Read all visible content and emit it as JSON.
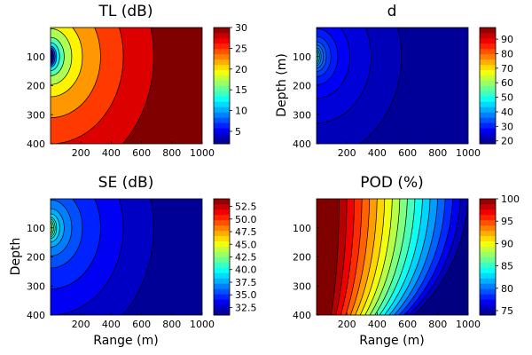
{
  "chart_data": [
    {
      "type": "heatmap",
      "subtype": "filled-contour",
      "title": "TL (dB)",
      "xlabel": "",
      "ylabel": "",
      "x_ticks": [
        200,
        400,
        600,
        800,
        1000
      ],
      "y_ticks": [
        100,
        200,
        300,
        400
      ],
      "xlim": [
        0,
        1000
      ],
      "ylim": [
        400,
        0
      ],
      "y_inverted": true,
      "colormap": "jet",
      "colorbar_range": [
        2,
        30
      ],
      "colorbar_ticks": [
        5,
        10,
        15,
        20,
        25,
        30
      ],
      "colorbar_tick_labels": [
        "5",
        "10",
        "15",
        "20",
        "25",
        "30"
      ],
      "source_x": 0,
      "source_depth": 100,
      "value_at_source": 2,
      "value_far": 30,
      "contour_ranges": [
        10,
        20,
        30,
        40,
        60,
        90,
        140,
        210,
        330,
        480,
        680
      ]
    },
    {
      "type": "heatmap",
      "subtype": "filled-contour",
      "title": "d",
      "xlabel": "",
      "ylabel": "Depth (m)",
      "x_ticks": [
        200,
        400,
        600,
        800,
        1000
      ],
      "y_ticks": [
        100,
        200,
        300,
        400
      ],
      "xlim": [
        0,
        1000
      ],
      "ylim": [
        400,
        0
      ],
      "y_inverted": true,
      "colormap": "jet",
      "colorbar_range": [
        18,
        98
      ],
      "colorbar_ticks": [
        20,
        30,
        40,
        50,
        60,
        70,
        80,
        90
      ],
      "colorbar_tick_labels": [
        "20",
        "30",
        "40",
        "50",
        "60",
        "70",
        "80",
        "90"
      ],
      "source_x": 0,
      "source_depth": 100,
      "value_at_source": 45,
      "value_far": 20,
      "contour_ranges": [
        10,
        20,
        30,
        45,
        65,
        95,
        140,
        220,
        360,
        560
      ]
    },
    {
      "type": "heatmap",
      "subtype": "filled-contour",
      "title": "SE (dB)",
      "xlabel": "Range (m)",
      "ylabel": "Depth",
      "x_ticks": [
        200,
        400,
        600,
        800,
        1000
      ],
      "y_ticks": [
        100,
        200,
        300,
        400
      ],
      "xlim": [
        0,
        1000
      ],
      "ylim": [
        400,
        0
      ],
      "y_inverted": true,
      "colormap": "jet",
      "colorbar_range": [
        31,
        54
      ],
      "colorbar_ticks": [
        32.5,
        35,
        37.5,
        40,
        42.5,
        45,
        47.5,
        50,
        52.5
      ],
      "colorbar_tick_labels": [
        "32.5",
        "35.0",
        "37.5",
        "40.0",
        "42.5",
        "45.0",
        "47.5",
        "50.0",
        "52.5"
      ],
      "source_x": 0,
      "source_depth": 100,
      "value_at_source": 43,
      "value_far": 31.5,
      "contour_ranges": [
        10,
        20,
        30,
        40,
        60,
        90,
        140,
        210,
        330,
        480,
        680
      ]
    },
    {
      "type": "heatmap",
      "subtype": "filled-contour",
      "title": "POD (%)",
      "xlabel": "Range (m)",
      "ylabel": "",
      "x_ticks": [
        200,
        400,
        600,
        800,
        1000
      ],
      "y_ticks": [
        100,
        200,
        300,
        400
      ],
      "xlim": [
        0,
        1000
      ],
      "ylim": [
        400,
        0
      ],
      "y_inverted": true,
      "colormap": "jet",
      "colorbar_range": [
        74,
        100
      ],
      "colorbar_ticks": [
        75,
        80,
        85,
        90,
        95,
        100
      ],
      "colorbar_tick_labels": [
        "75",
        "80",
        "85",
        "90",
        "95",
        "100"
      ],
      "source_x": 0,
      "source_depth": 100,
      "value_at_source": 100,
      "value_far": 74,
      "contour_ranges": [
        150,
        200,
        250,
        300,
        350,
        400,
        450,
        500,
        550,
        600,
        650,
        700,
        750,
        800,
        850,
        900,
        950,
        1000
      ]
    }
  ]
}
